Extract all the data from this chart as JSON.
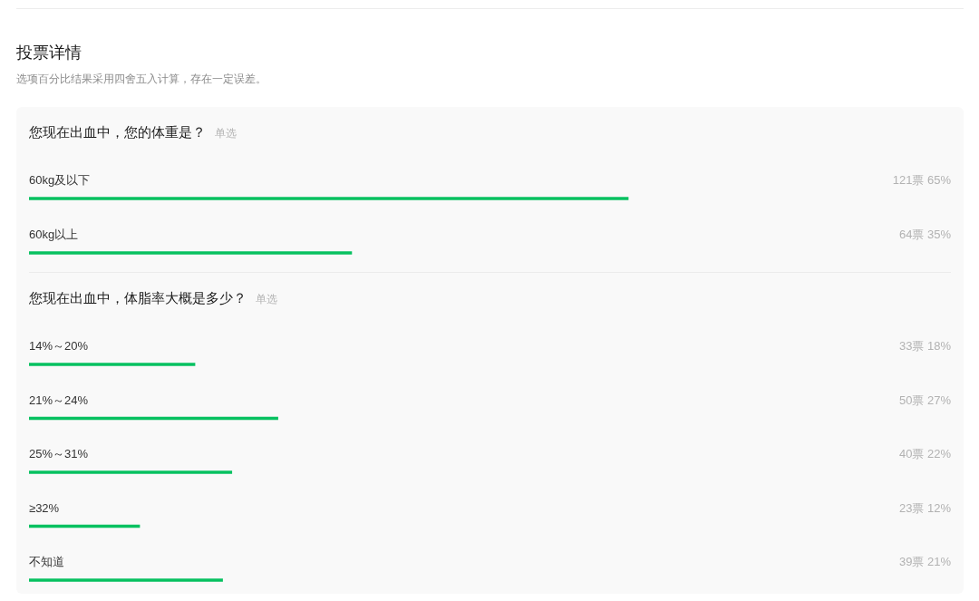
{
  "chart_data": [
    {
      "type": "bar",
      "orientation": "horizontal",
      "title": "您现在出血中，您的体重是？",
      "annotations": [
        "投票详情",
        "选项百分比结果采用四舍五入计算，存在一定误差。",
        "单选"
      ],
      "categories": [
        "60kg及以下",
        "60kg以上"
      ],
      "values": [
        65,
        35
      ],
      "value_labels": [
        "121票 65%",
        "64票 35%"
      ],
      "color": "#07c160",
      "tick_labels": "y"
    },
    {
      "type": "bar",
      "orientation": "horizontal",
      "title": "您现在出血中，体脂率大概是多少？",
      "annotations": [
        "单选"
      ],
      "categories": [
        "14%～20%",
        "21%～24%",
        "25%～31%",
        "≥32%",
        "不知道"
      ],
      "values": [
        18,
        27,
        22,
        12,
        21
      ],
      "value_labels": [
        "33票 18%",
        "50票 27%",
        "40票 22%",
        "23票 12%",
        "39票 21%"
      ],
      "color": "#07c160",
      "tick_labels": "y"
    }
  ]
}
